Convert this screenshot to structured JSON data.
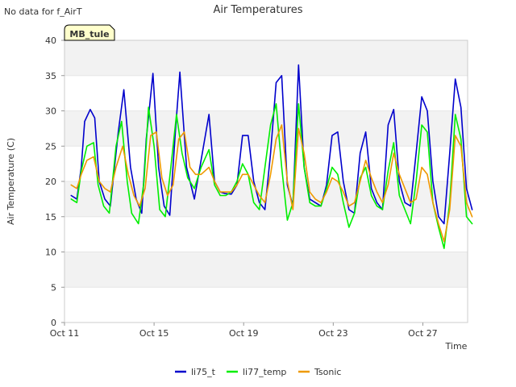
{
  "notice": "No data for f_AirT",
  "station_badge": "MB_tule",
  "chart_data": {
    "type": "line",
    "title": "Air Temperatures",
    "xlabel": "Time",
    "ylabel": "Air Temperature (C)",
    "xlim": [
      0,
      18
    ],
    "ylim": [
      0,
      40
    ],
    "x_tick_values": [
      0,
      4,
      8,
      12,
      16
    ],
    "x_tick_labels": [
      "Oct 11",
      "Oct 15",
      "Oct 19",
      "Oct 23",
      "Oct 27"
    ],
    "y_ticks": [
      0,
      5,
      10,
      15,
      20,
      25,
      30,
      35,
      40
    ],
    "grid": "horizontal bands",
    "legend_position": "bottom-center",
    "series": [
      {
        "name": "li75_t",
        "color": "#0000cc",
        "x": [
          0.3,
          0.55,
          0.75,
          0.9,
          1.15,
          1.35,
          1.55,
          1.8,
          2.05,
          2.4,
          2.65,
          2.95,
          3.2,
          3.45,
          3.65,
          3.95,
          4.2,
          4.45,
          4.7,
          4.95,
          5.15,
          5.45,
          5.8,
          6.1,
          6.45,
          6.7,
          6.95,
          7.15,
          7.45,
          7.7,
          7.95,
          8.2,
          8.45,
          8.7,
          8.95,
          9.2,
          9.45,
          9.7,
          9.95,
          10.2,
          10.45,
          10.7,
          10.95,
          11.2,
          11.45,
          11.7,
          11.95,
          12.2,
          12.45,
          12.7,
          12.95,
          13.2,
          13.45,
          13.7,
          13.95,
          14.2,
          14.45,
          14.7,
          14.95,
          15.2,
          15.45,
          15.7,
          15.95,
          16.2,
          16.45,
          16.7,
          16.95,
          17.2,
          17.45,
          17.7,
          17.95,
          18.2
        ],
        "y": [
          18,
          17.5,
          22,
          28.5,
          30.2,
          29,
          20,
          17.5,
          16.5,
          27,
          33,
          22,
          17.5,
          15.5,
          26,
          35.3,
          22,
          16.5,
          15.2,
          27,
          35.5,
          22,
          17.5,
          23,
          29.5,
          20,
          18.5,
          18.3,
          18.2,
          19.5,
          26.5,
          26.5,
          20,
          17,
          16,
          24,
          34,
          35,
          19.5,
          16.5,
          36.5,
          22,
          17.5,
          17,
          16.5,
          19.5,
          26.5,
          27,
          20,
          16,
          15.5,
          24,
          27,
          19,
          17,
          16,
          28,
          30.2,
          20,
          17,
          16.5,
          24,
          32,
          30,
          20,
          15,
          14,
          24,
          34.5,
          30.5,
          19,
          16
        ]
      },
      {
        "name": "li77_temp",
        "color": "#00ee00",
        "x": [
          0.3,
          0.55,
          0.75,
          1.0,
          1.3,
          1.5,
          1.75,
          2.0,
          2.3,
          2.55,
          2.8,
          3.0,
          3.3,
          3.55,
          3.75,
          4.0,
          4.25,
          4.5,
          4.75,
          5.0,
          5.25,
          5.5,
          5.8,
          6.1,
          6.45,
          6.7,
          6.95,
          7.2,
          7.45,
          7.7,
          7.95,
          8.2,
          8.45,
          8.7,
          8.95,
          9.2,
          9.45,
          9.7,
          9.95,
          10.2,
          10.45,
          10.7,
          10.95,
          11.2,
          11.45,
          11.7,
          11.95,
          12.2,
          12.45,
          12.7,
          12.95,
          13.2,
          13.45,
          13.7,
          13.95,
          14.2,
          14.45,
          14.7,
          14.95,
          15.2,
          15.45,
          15.7,
          15.95,
          16.2,
          16.45,
          16.7,
          16.95,
          17.2,
          17.45,
          17.7,
          17.95,
          18.2
        ],
        "y": [
          17.5,
          17,
          21.5,
          25,
          25.5,
          19.5,
          16.5,
          15.5,
          25,
          28.5,
          20,
          15.5,
          14,
          20,
          30.5,
          25,
          16,
          15,
          22,
          29.5,
          24,
          20.5,
          19,
          22,
          24.5,
          19.5,
          18,
          18,
          18.5,
          20,
          22.5,
          21,
          17,
          16,
          22,
          28,
          31,
          22,
          14.5,
          17,
          31,
          22,
          17,
          16.5,
          16.5,
          19,
          22,
          21,
          17,
          13.5,
          15.5,
          20.5,
          22,
          18,
          16.5,
          16,
          21.5,
          25.5,
          18,
          16,
          14,
          20,
          28,
          27,
          17,
          13.5,
          10.5,
          17,
          29.5,
          26,
          15,
          14
        ]
      },
      {
        "name": "Tsonic",
        "color": "#ee9900",
        "x": [
          0.3,
          0.55,
          0.75,
          1.0,
          1.3,
          1.55,
          1.8,
          2.05,
          2.3,
          2.6,
          2.85,
          3.1,
          3.35,
          3.6,
          3.85,
          4.1,
          4.35,
          4.6,
          4.85,
          5.1,
          5.35,
          5.6,
          5.85,
          6.1,
          6.45,
          6.7,
          6.95,
          7.2,
          7.45,
          7.7,
          7.95,
          8.2,
          8.45,
          8.7,
          8.95,
          9.2,
          9.45,
          9.7,
          9.95,
          10.2,
          10.45,
          10.7,
          10.95,
          11.2,
          11.45,
          11.7,
          11.95,
          12.2,
          12.45,
          12.7,
          12.95,
          13.2,
          13.45,
          13.7,
          13.95,
          14.2,
          14.45,
          14.7,
          14.95,
          15.2,
          15.45,
          15.7,
          15.95,
          16.2,
          16.45,
          16.7,
          16.95,
          17.2,
          17.45,
          17.7,
          17.95,
          18.2
        ],
        "y": [
          19.5,
          19,
          21,
          23,
          23.5,
          20,
          19,
          18.5,
          22,
          25,
          21,
          18,
          16.5,
          19,
          26.5,
          27,
          20.5,
          18,
          19.5,
          26,
          27,
          22,
          21,
          21,
          22,
          20,
          18.5,
          18.5,
          18.5,
          19.5,
          21,
          21,
          19.5,
          18,
          17,
          21,
          26,
          28,
          20,
          16,
          27.5,
          24,
          18.5,
          17.5,
          17,
          18.5,
          20.5,
          20,
          18.5,
          16.5,
          17,
          20,
          23,
          20.5,
          18.5,
          17,
          19.5,
          24,
          21,
          19,
          17,
          17.5,
          22,
          21,
          17,
          14,
          11.5,
          16,
          26.5,
          25,
          17,
          15
        ]
      }
    ]
  }
}
